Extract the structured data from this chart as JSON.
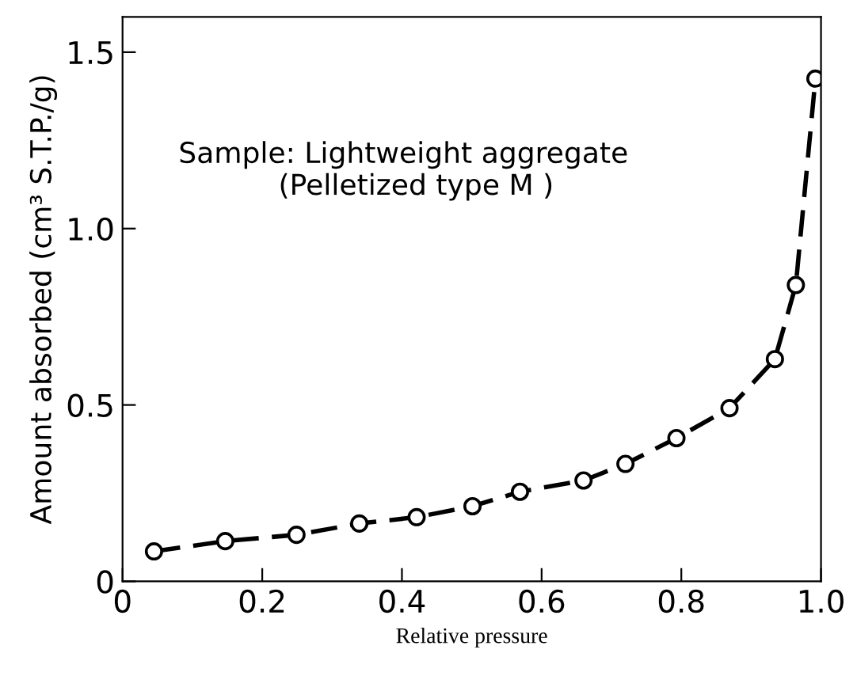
{
  "chart_data": {
    "type": "line",
    "xlabel": "Relative pressure",
    "ylabel": "Amount absorbed (cm³ S.T.P./g)",
    "annotations": [
      "Sample: Lightweight aggregate\n           (Pelletized type M )"
    ],
    "x": [
      0.045,
      0.147,
      0.249,
      0.339,
      0.421,
      0.501,
      0.569,
      0.66,
      0.72,
      0.793,
      0.869,
      0.934,
      0.964,
      0.992
    ],
    "series": [
      {
        "color": "#000000",
        "values": [
          0.085,
          0.114,
          0.132,
          0.164,
          0.182,
          0.213,
          0.254,
          0.286,
          0.333,
          0.406,
          0.491,
          0.63,
          0.84,
          1.425
        ]
      }
    ],
    "marker": "circle",
    "line_style": "dashed",
    "grid": false,
    "xlim": [
      0,
      1
    ],
    "ylim": [
      0,
      1.6
    ],
    "xticks": [
      0,
      0.2,
      0.4,
      0.6,
      0.8,
      {
        "value": 1,
        "label": "1.0"
      }
    ],
    "yticks": [
      0,
      0.5,
      {
        "value": 1,
        "label": "1.0"
      },
      1.5
    ]
  }
}
